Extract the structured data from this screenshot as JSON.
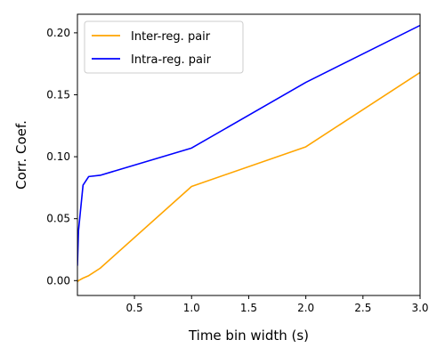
{
  "chart_data": {
    "type": "line",
    "xlabel": "Time bin width (s)",
    "ylabel": "Corr. Coef.",
    "xlim": [
      0.001,
      3.0
    ],
    "ylim": [
      -0.012,
      0.215
    ],
    "xticks": [
      0.5,
      1.0,
      1.5,
      2.0,
      2.5,
      3.0
    ],
    "xtick_labels": [
      "0.5",
      "1.0",
      "1.5",
      "2.0",
      "2.5",
      "3.0"
    ],
    "yticks": [
      0.0,
      0.05,
      0.1,
      0.15,
      0.2
    ],
    "ytick_labels": [
      "0.00",
      "0.05",
      "0.10",
      "0.15",
      "0.20"
    ],
    "legend_position": "top-left",
    "grid": false,
    "series": [
      {
        "name": "Inter-reg. pair",
        "color": "#FFA500",
        "x": [
          0.001,
          0.01,
          0.05,
          0.1,
          0.2,
          1.0,
          2.0,
          3.0
        ],
        "y": [
          -0.001,
          0.0,
          0.002,
          0.004,
          0.01,
          0.076,
          0.108,
          0.168
        ]
      },
      {
        "name": "Intra-reg. pair",
        "color": "#0000FF",
        "x": [
          0.001,
          0.01,
          0.05,
          0.1,
          0.2,
          1.0,
          2.0,
          3.0
        ],
        "y": [
          0.012,
          0.04,
          0.077,
          0.084,
          0.085,
          0.107,
          0.16,
          0.206
        ]
      }
    ]
  }
}
